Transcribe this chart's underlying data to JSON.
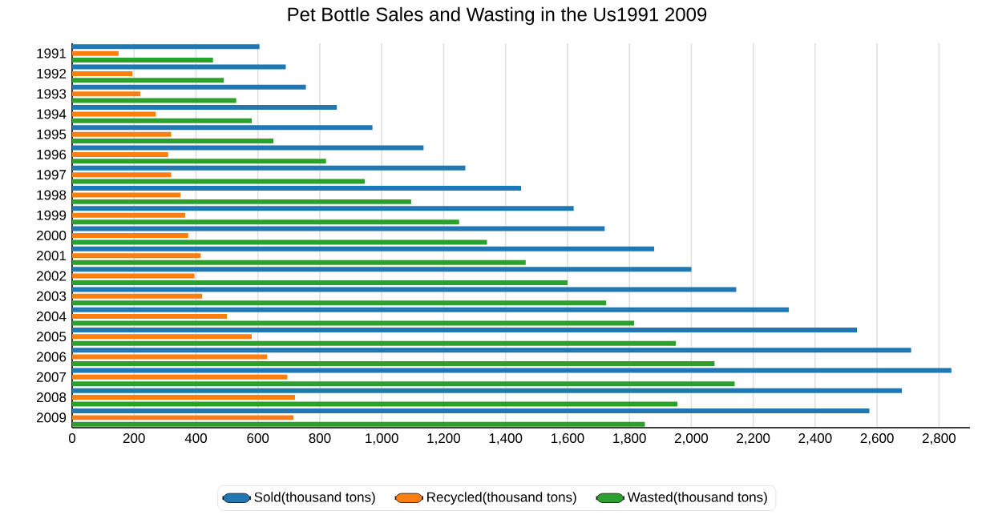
{
  "chart_data": {
    "type": "bar",
    "orientation": "horizontal",
    "title": "Pet Bottle Sales and Wasting in the Us1991 2009",
    "categories": [
      "1991",
      "1992",
      "1993",
      "1994",
      "1995",
      "1996",
      "1997",
      "1998",
      "1999",
      "2000",
      "2001",
      "2002",
      "2003",
      "2004",
      "2005",
      "2006",
      "2007",
      "2008",
      "2009"
    ],
    "series": [
      {
        "name": "Sold(thousand tons)",
        "color": "#1f77b4",
        "values": [
          605,
          690,
          755,
          855,
          970,
          1135,
          1270,
          1450,
          1620,
          1720,
          1880,
          2000,
          2145,
          2315,
          2535,
          2710,
          2840,
          2680,
          2575
        ]
      },
      {
        "name": "Recycled(thousand tons)",
        "color": "#ff7f0e",
        "values": [
          150,
          195,
          220,
          270,
          320,
          310,
          320,
          350,
          365,
          375,
          415,
          395,
          420,
          500,
          580,
          630,
          695,
          720,
          715
        ]
      },
      {
        "name": "Wasted(thousand tons)",
        "color": "#2ca02c",
        "values": [
          455,
          490,
          530,
          580,
          650,
          820,
          945,
          1095,
          1250,
          1340,
          1465,
          1600,
          1725,
          1815,
          1950,
          2075,
          2140,
          1955,
          1850
        ]
      }
    ],
    "xlim": [
      0,
      2900
    ],
    "xticks": [
      0,
      200,
      400,
      600,
      800,
      {
        "value": 1000,
        "label": "1,000"
      },
      {
        "value": 1200,
        "label": "1,200"
      },
      {
        "value": 1400,
        "label": "1,400"
      },
      {
        "value": 1600,
        "label": "1,600"
      },
      {
        "value": 1800,
        "label": "1,800"
      },
      {
        "value": 2000,
        "label": "2,000"
      },
      {
        "value": 2200,
        "label": "2,200"
      },
      {
        "value": 2400,
        "label": "2,400"
      },
      {
        "value": 2600,
        "label": "2,600"
      },
      {
        "value": 2800,
        "label": "2,800"
      }
    ],
    "grid": "x",
    "legend": "bottom"
  }
}
